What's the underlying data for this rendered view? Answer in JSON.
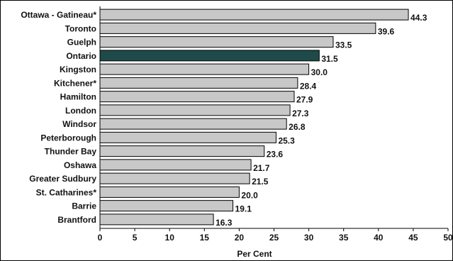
{
  "chart_data": {
    "type": "bar",
    "orientation": "horizontal",
    "categories": [
      "Ottawa - Gatineau*",
      "Toronto",
      "Guelph",
      "Ontario",
      "Kingston",
      "Kitchener*",
      "Hamilton",
      "London",
      "Windsor",
      "Peterborough",
      "Thunder Bay",
      "Oshawa",
      "Greater Sudbury",
      "St. Catharines*",
      "Barrie",
      "Brantford"
    ],
    "values": [
      44.3,
      39.6,
      33.5,
      31.5,
      30.0,
      28.4,
      27.9,
      27.3,
      26.8,
      25.3,
      23.6,
      21.7,
      21.5,
      20.0,
      19.1,
      16.3
    ],
    "value_labels": [
      "44.3",
      "39.6",
      "33.5",
      "31.5",
      "30.0",
      "28.4",
      "27.9",
      "27.3",
      "26.8",
      "25.3",
      "23.6",
      "21.7",
      "21.5",
      "20.0",
      "19.1",
      "16.3"
    ],
    "highlight_category": "Ontario",
    "xlabel": "Per Cent",
    "xlim": [
      0,
      50
    ],
    "xticks": [
      0,
      5,
      10,
      15,
      20,
      25,
      30,
      35,
      40,
      45,
      50
    ],
    "grid": false,
    "legend": "none",
    "colors": {
      "bar": "#c8c8c8",
      "bar_highlight": "#1f4a4a",
      "bar_stroke": "#000000",
      "text": "#111111"
    }
  }
}
